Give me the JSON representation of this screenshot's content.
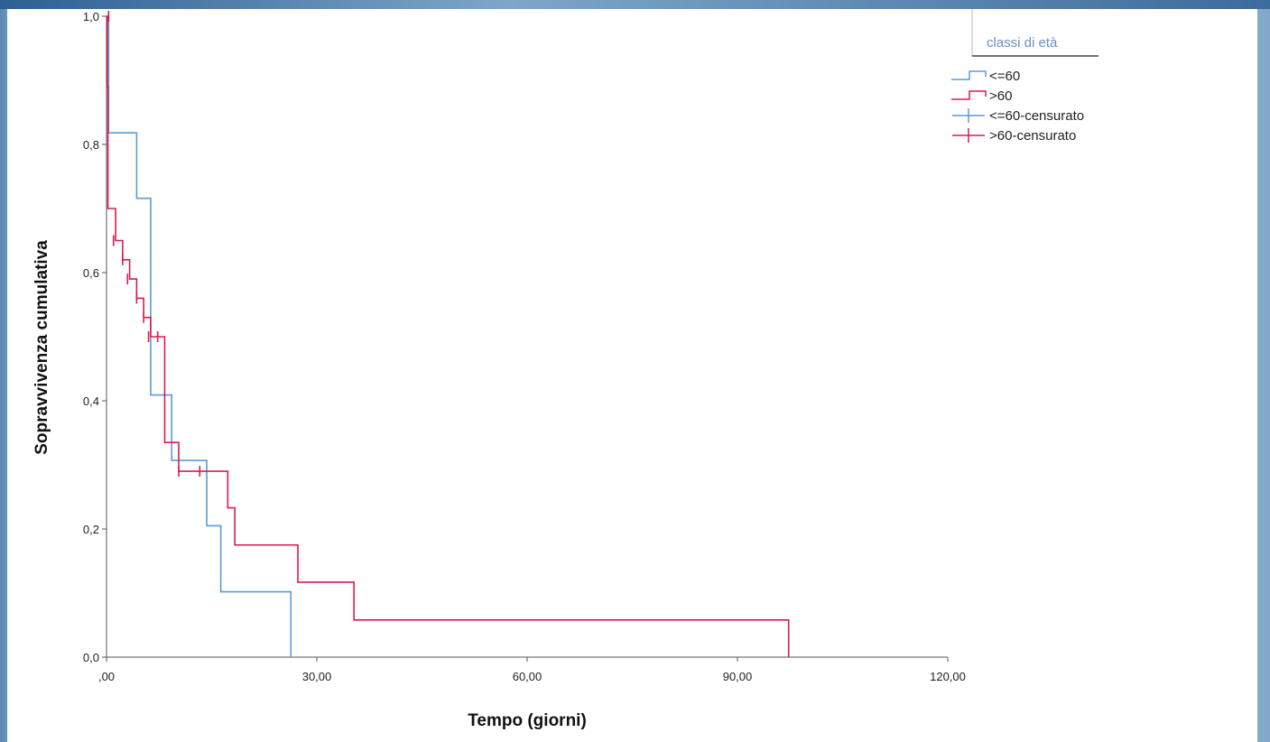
{
  "chart_data": {
    "type": "line",
    "subtype": "kaplan-meier step",
    "xlabel": "Tempo (giorni)",
    "ylabel": "Sopravvivenza cumulativa",
    "xlim": [
      0,
      120
    ],
    "ylim": [
      0,
      1
    ],
    "x_ticks": [
      ",00",
      "30,00",
      "60,00",
      "90,00",
      "120,00"
    ],
    "y_ticks": [
      "0,0",
      "0,2",
      "0,4",
      "0,6",
      "0,8",
      "1,0"
    ],
    "grid": false,
    "legend": {
      "title": "classi di età",
      "placement": "top-right",
      "entries": [
        "<=60",
        ">60",
        "<=60-censurato",
        ">60-censurato"
      ]
    },
    "series": [
      {
        "name": "<=60",
        "color": "#5b9bd5",
        "steps": [
          [
            0,
            1.0
          ],
          [
            0.3,
            0.818
          ],
          [
            4.3,
            0.716
          ],
          [
            6.3,
            0.409
          ],
          [
            9.3,
            0.307
          ],
          [
            14.3,
            0.205
          ],
          [
            16.3,
            0.102
          ],
          [
            26.3,
            0.0
          ]
        ],
        "end_x": 26.3
      },
      {
        "name": ">60",
        "color": "#d81b4f",
        "steps": [
          [
            0,
            1.0
          ],
          [
            0.1,
            0.89
          ],
          [
            0.2,
            0.7
          ],
          [
            1.3,
            0.65
          ],
          [
            2.3,
            0.62
          ],
          [
            3.3,
            0.59
          ],
          [
            4.3,
            0.56
          ],
          [
            5.3,
            0.53
          ],
          [
            6.3,
            0.5
          ],
          [
            8.3,
            0.335
          ],
          [
            10.3,
            0.29
          ],
          [
            17.3,
            0.233
          ],
          [
            18.3,
            0.175
          ],
          [
            27.3,
            0.117
          ],
          [
            35.3,
            0.058
          ],
          [
            97.3,
            0.0
          ]
        ],
        "end_x": 97.3,
        "censored": [
          [
            0.3,
            1.0
          ],
          [
            1.0,
            0.65
          ],
          [
            2.3,
            0.62
          ],
          [
            3.0,
            0.59
          ],
          [
            4.3,
            0.56
          ],
          [
            5.3,
            0.53
          ],
          [
            6.0,
            0.5
          ],
          [
            7.3,
            0.5
          ],
          [
            10.3,
            0.29
          ],
          [
            13.3,
            0.29
          ]
        ]
      }
    ]
  }
}
